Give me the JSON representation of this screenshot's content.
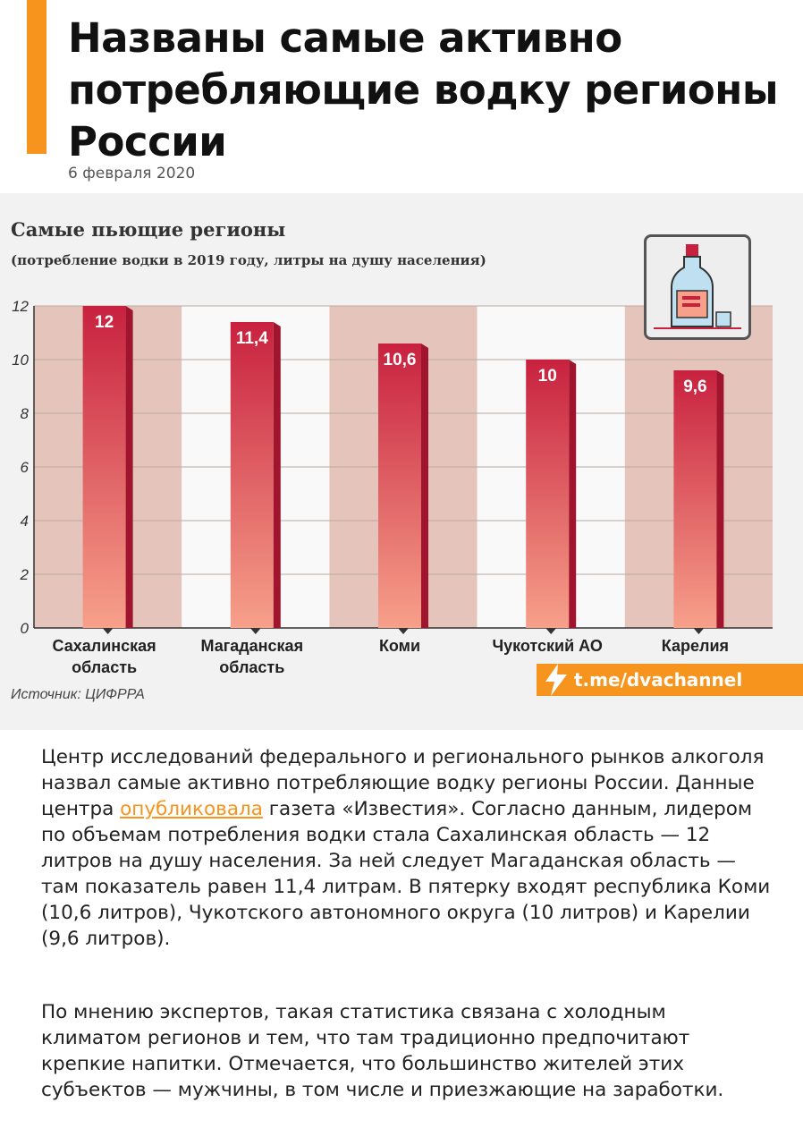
{
  "headline": "Названы самые активно потребляющие водку регионы России",
  "date": "6 февраля 2020",
  "chart_data": {
    "type": "bar",
    "title": "Самые пьющие регионы",
    "subtitle": "(потребление водки в 2019 году, литры на душу населения)",
    "categories": [
      [
        "Сахалинская",
        "область"
      ],
      [
        "Магаданская",
        "область"
      ],
      [
        "Коми"
      ],
      [
        "Чукотский АО"
      ],
      [
        "Карелия"
      ]
    ],
    "values": [
      12,
      11.4,
      10.6,
      10,
      9.6
    ],
    "value_labels": [
      "12",
      "11,4",
      "10,6",
      "10",
      "9,6"
    ],
    "yticks": [
      0,
      2,
      4,
      6,
      8,
      10,
      12
    ],
    "ylim": [
      0,
      12
    ],
    "grid": true,
    "source": "Источник: ЦИФРРА",
    "colors": {
      "bar_top": "#c8213f",
      "bar_bottom": "#f7a08a",
      "bar_side": "#a0142d",
      "band": "#e5c5bb"
    }
  },
  "telegram_badge": "t.me/dvachannel",
  "accent_color": "#f7941d",
  "article": {
    "p1_before_link": "Центр исследований федерального и регионального рынков алкоголя назвал самые активно потребляющие водку регионы России. Данные центра ",
    "p1_link": "опубликовала",
    "p1_after_link": " газета «Известия». Согласно данным, лидером по объемам потребления водки стала Сахалинская область — 12 литров на душу населения. За ней следует Магаданская область — там показатель равен 11,4 литрам. В пятерку входят республика Коми (10,6 литров), Чукотского автономного округа (10 литров) и Карелии (9,6 литров).",
    "p2": "По мнению экспертов, такая статистика связана с холодным климатом регионов и тем, что там традиционно предпочитают крепкие напитки. Отмечается, что большинство жителей этих субъектов — мужчины, в том числе и приезжающие на заработки."
  }
}
